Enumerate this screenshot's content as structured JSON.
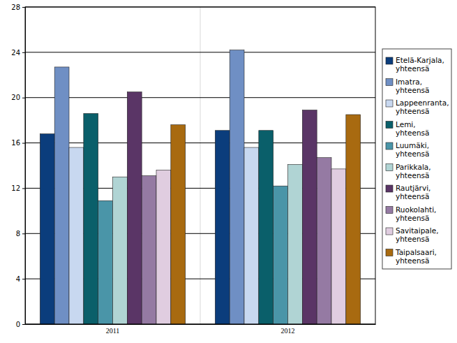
{
  "chart_data": {
    "type": "bar",
    "categories": [
      "2011",
      "2012"
    ],
    "series": [
      {
        "name": "Etelä-Karjala, yhteensä",
        "color": "#0b3d7c",
        "values": [
          16.8,
          17.1
        ]
      },
      {
        "name": "Imatra, yhteensä",
        "color": "#6f8fc4",
        "values": [
          22.7,
          24.2
        ]
      },
      {
        "name": "Lappeenranta, yhteensä",
        "color": "#c8d8f0",
        "values": [
          15.6,
          15.6
        ]
      },
      {
        "name": "Lemi, yhteensä",
        "color": "#0a5f6a",
        "values": [
          18.6,
          17.1
        ]
      },
      {
        "name": "Luumäki, yhteensä",
        "color": "#4a95a8",
        "values": [
          10.9,
          12.2
        ]
      },
      {
        "name": "Parikkala, yhteensä",
        "color": "#b0d4d4",
        "values": [
          13.0,
          14.1
        ]
      },
      {
        "name": "Rautjärvi, yhteensä",
        "color": "#5a3566",
        "values": [
          20.5,
          18.9
        ]
      },
      {
        "name": "Ruokolahti, yhteensä",
        "color": "#957aa3",
        "values": [
          13.1,
          14.7
        ]
      },
      {
        "name": "Savitaipale, yhteensä",
        "color": "#e0cde0",
        "values": [
          13.6,
          13.7
        ]
      },
      {
        "name": "Taipalsaari, yhteensä",
        "color": "#a86a10",
        "values": [
          17.6,
          18.5
        ]
      }
    ],
    "ylim": [
      0,
      28
    ],
    "yticks": [
      0,
      4,
      8,
      12,
      16,
      20,
      24,
      28
    ],
    "grid": true,
    "legend": "right"
  }
}
